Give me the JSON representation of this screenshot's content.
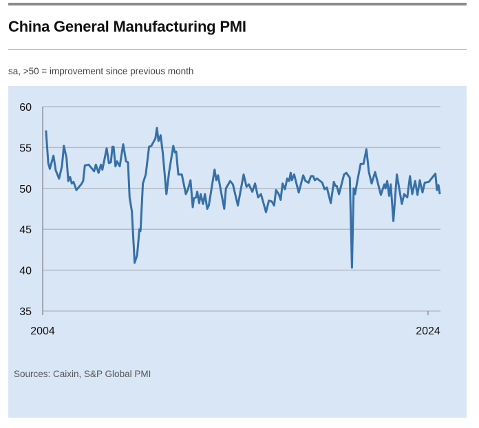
{
  "header": {
    "title": "China General Manufacturing PMI",
    "subtitle": "sa, >50 = improvement since previous month"
  },
  "footer": {
    "source": "Sources: Caixin, S&P Global PMI"
  },
  "colors": {
    "line": "#3670a8",
    "panel": "#d9e6f5",
    "grid": "#b5bcc4"
  },
  "chart_data": {
    "type": "line",
    "title": "China General Manufacturing PMI",
    "subtitle": "sa, >50 = improvement since previous month",
    "xlabel": "",
    "ylabel": "",
    "ylim": [
      35,
      60
    ],
    "xlim": [
      2004,
      2024.6
    ],
    "yticks": [
      "60",
      "55",
      "50",
      "45",
      "40",
      "35"
    ],
    "ytick_values": [
      60,
      55,
      50,
      45,
      40,
      35
    ],
    "xticks": [
      "2004",
      "2024"
    ],
    "xtick_values": [
      2004,
      2024
    ],
    "grid": true,
    "series": [
      {
        "name": "PMI",
        "points": [
          [
            2004.17,
            57.1
          ],
          [
            2004.29,
            53.1
          ],
          [
            2004.37,
            52.4
          ],
          [
            2004.56,
            54.0
          ],
          [
            2004.68,
            52.2
          ],
          [
            2004.85,
            51.2
          ],
          [
            2005.0,
            52.7
          ],
          [
            2005.1,
            55.2
          ],
          [
            2005.24,
            53.7
          ],
          [
            2005.33,
            50.9
          ],
          [
            2005.42,
            51.4
          ],
          [
            2005.51,
            50.6
          ],
          [
            2005.6,
            50.8
          ],
          [
            2005.75,
            49.8
          ],
          [
            2006.0,
            50.5
          ],
          [
            2006.1,
            50.9
          ],
          [
            2006.19,
            52.8
          ],
          [
            2006.39,
            52.9
          ],
          [
            2006.67,
            52.1
          ],
          [
            2006.76,
            52.9
          ],
          [
            2006.9,
            51.9
          ],
          [
            2007.02,
            52.9
          ],
          [
            2007.1,
            52.3
          ],
          [
            2007.32,
            54.9
          ],
          [
            2007.44,
            53.1
          ],
          [
            2007.54,
            53.2
          ],
          [
            2007.62,
            55.1
          ],
          [
            2007.68,
            55.1
          ],
          [
            2007.78,
            52.7
          ],
          [
            2007.86,
            53.3
          ],
          [
            2008.0,
            52.7
          ],
          [
            2008.18,
            55.4
          ],
          [
            2008.33,
            53.3
          ],
          [
            2008.43,
            53.2
          ],
          [
            2008.51,
            48.9
          ],
          [
            2008.63,
            47.2
          ],
          [
            2008.77,
            40.9
          ],
          [
            2008.9,
            41.8
          ],
          [
            2009.02,
            45.0
          ],
          [
            2009.08,
            44.8
          ],
          [
            2009.2,
            50.6
          ],
          [
            2009.35,
            51.7
          ],
          [
            2009.52,
            55.1
          ],
          [
            2009.64,
            55.2
          ],
          [
            2009.85,
            56.1
          ],
          [
            2009.93,
            57.4
          ],
          [
            2010.01,
            55.8
          ],
          [
            2010.12,
            56.5
          ],
          [
            2010.24,
            54.2
          ],
          [
            2010.42,
            49.3
          ],
          [
            2010.56,
            52.0
          ],
          [
            2010.78,
            55.2
          ],
          [
            2010.86,
            54.4
          ],
          [
            2010.93,
            54.5
          ],
          [
            2011.04,
            51.7
          ],
          [
            2011.22,
            51.7
          ],
          [
            2011.43,
            49.3
          ],
          [
            2011.54,
            49.9
          ],
          [
            2011.67,
            51.0
          ],
          [
            2011.79,
            47.7
          ],
          [
            2011.85,
            48.8
          ],
          [
            2011.96,
            48.9
          ],
          [
            2012.02,
            49.6
          ],
          [
            2012.12,
            48.2
          ],
          [
            2012.2,
            49.3
          ],
          [
            2012.32,
            48.1
          ],
          [
            2012.42,
            49.3
          ],
          [
            2012.54,
            47.5
          ],
          [
            2012.62,
            47.9
          ],
          [
            2012.92,
            52.3
          ],
          [
            2013.01,
            51.0
          ],
          [
            2013.1,
            51.6
          ],
          [
            2013.42,
            47.5
          ],
          [
            2013.51,
            50.0
          ],
          [
            2013.73,
            50.9
          ],
          [
            2013.87,
            50.5
          ],
          [
            2014.13,
            47.9
          ],
          [
            2014.43,
            51.7
          ],
          [
            2014.58,
            50.2
          ],
          [
            2014.7,
            50.5
          ],
          [
            2014.88,
            49.6
          ],
          [
            2015.02,
            50.6
          ],
          [
            2015.18,
            48.9
          ],
          [
            2015.33,
            49.3
          ],
          [
            2015.59,
            47.1
          ],
          [
            2015.74,
            48.5
          ],
          [
            2015.89,
            48.4
          ],
          [
            2016.01,
            47.9
          ],
          [
            2016.11,
            49.8
          ],
          [
            2016.25,
            49.3
          ],
          [
            2016.35,
            48.6
          ],
          [
            2016.45,
            50.6
          ],
          [
            2016.57,
            49.9
          ],
          [
            2016.69,
            51.2
          ],
          [
            2016.79,
            50.9
          ],
          [
            2016.87,
            51.9
          ],
          [
            2016.93,
            51.0
          ],
          [
            2017.05,
            51.7
          ],
          [
            2017.29,
            49.5
          ],
          [
            2017.52,
            51.6
          ],
          [
            2017.64,
            50.9
          ],
          [
            2017.8,
            50.7
          ],
          [
            2017.92,
            51.5
          ],
          [
            2018.04,
            51.5
          ],
          [
            2018.12,
            51.0
          ],
          [
            2018.24,
            51.2
          ],
          [
            2018.51,
            50.7
          ],
          [
            2018.63,
            49.9
          ],
          [
            2018.75,
            50.1
          ],
          [
            2018.95,
            48.2
          ],
          [
            2019.11,
            50.8
          ],
          [
            2019.19,
            50.3
          ],
          [
            2019.26,
            50.3
          ],
          [
            2019.38,
            49.3
          ],
          [
            2019.64,
            51.7
          ],
          [
            2019.76,
            51.9
          ],
          [
            2019.94,
            51.3
          ],
          [
            2020.05,
            40.3
          ],
          [
            2020.14,
            50.0
          ],
          [
            2020.21,
            49.3
          ],
          [
            2020.33,
            50.9
          ],
          [
            2020.5,
            53.0
          ],
          [
            2020.65,
            53.0
          ],
          [
            2020.8,
            54.8
          ],
          [
            2020.93,
            52.0
          ],
          [
            2021.07,
            50.6
          ],
          [
            2021.25,
            52.0
          ],
          [
            2021.55,
            49.2
          ],
          [
            2021.73,
            50.5
          ],
          [
            2021.79,
            50.0
          ],
          [
            2021.88,
            50.9
          ],
          [
            2021.98,
            49.1
          ],
          [
            2022.06,
            50.5
          ],
          [
            2022.2,
            46.0
          ],
          [
            2022.38,
            51.7
          ],
          [
            2022.64,
            48.1
          ],
          [
            2022.76,
            49.3
          ],
          [
            2022.92,
            48.9
          ],
          [
            2023.06,
            51.5
          ],
          [
            2023.18,
            49.3
          ],
          [
            2023.33,
            50.9
          ],
          [
            2023.45,
            49.2
          ],
          [
            2023.57,
            51.0
          ],
          [
            2023.71,
            49.5
          ],
          [
            2023.83,
            50.7
          ],
          [
            2024.04,
            50.8
          ],
          [
            2024.38,
            51.8
          ],
          [
            2024.46,
            49.8
          ],
          [
            2024.54,
            50.4
          ],
          [
            2024.61,
            49.3
          ]
        ]
      }
    ]
  }
}
